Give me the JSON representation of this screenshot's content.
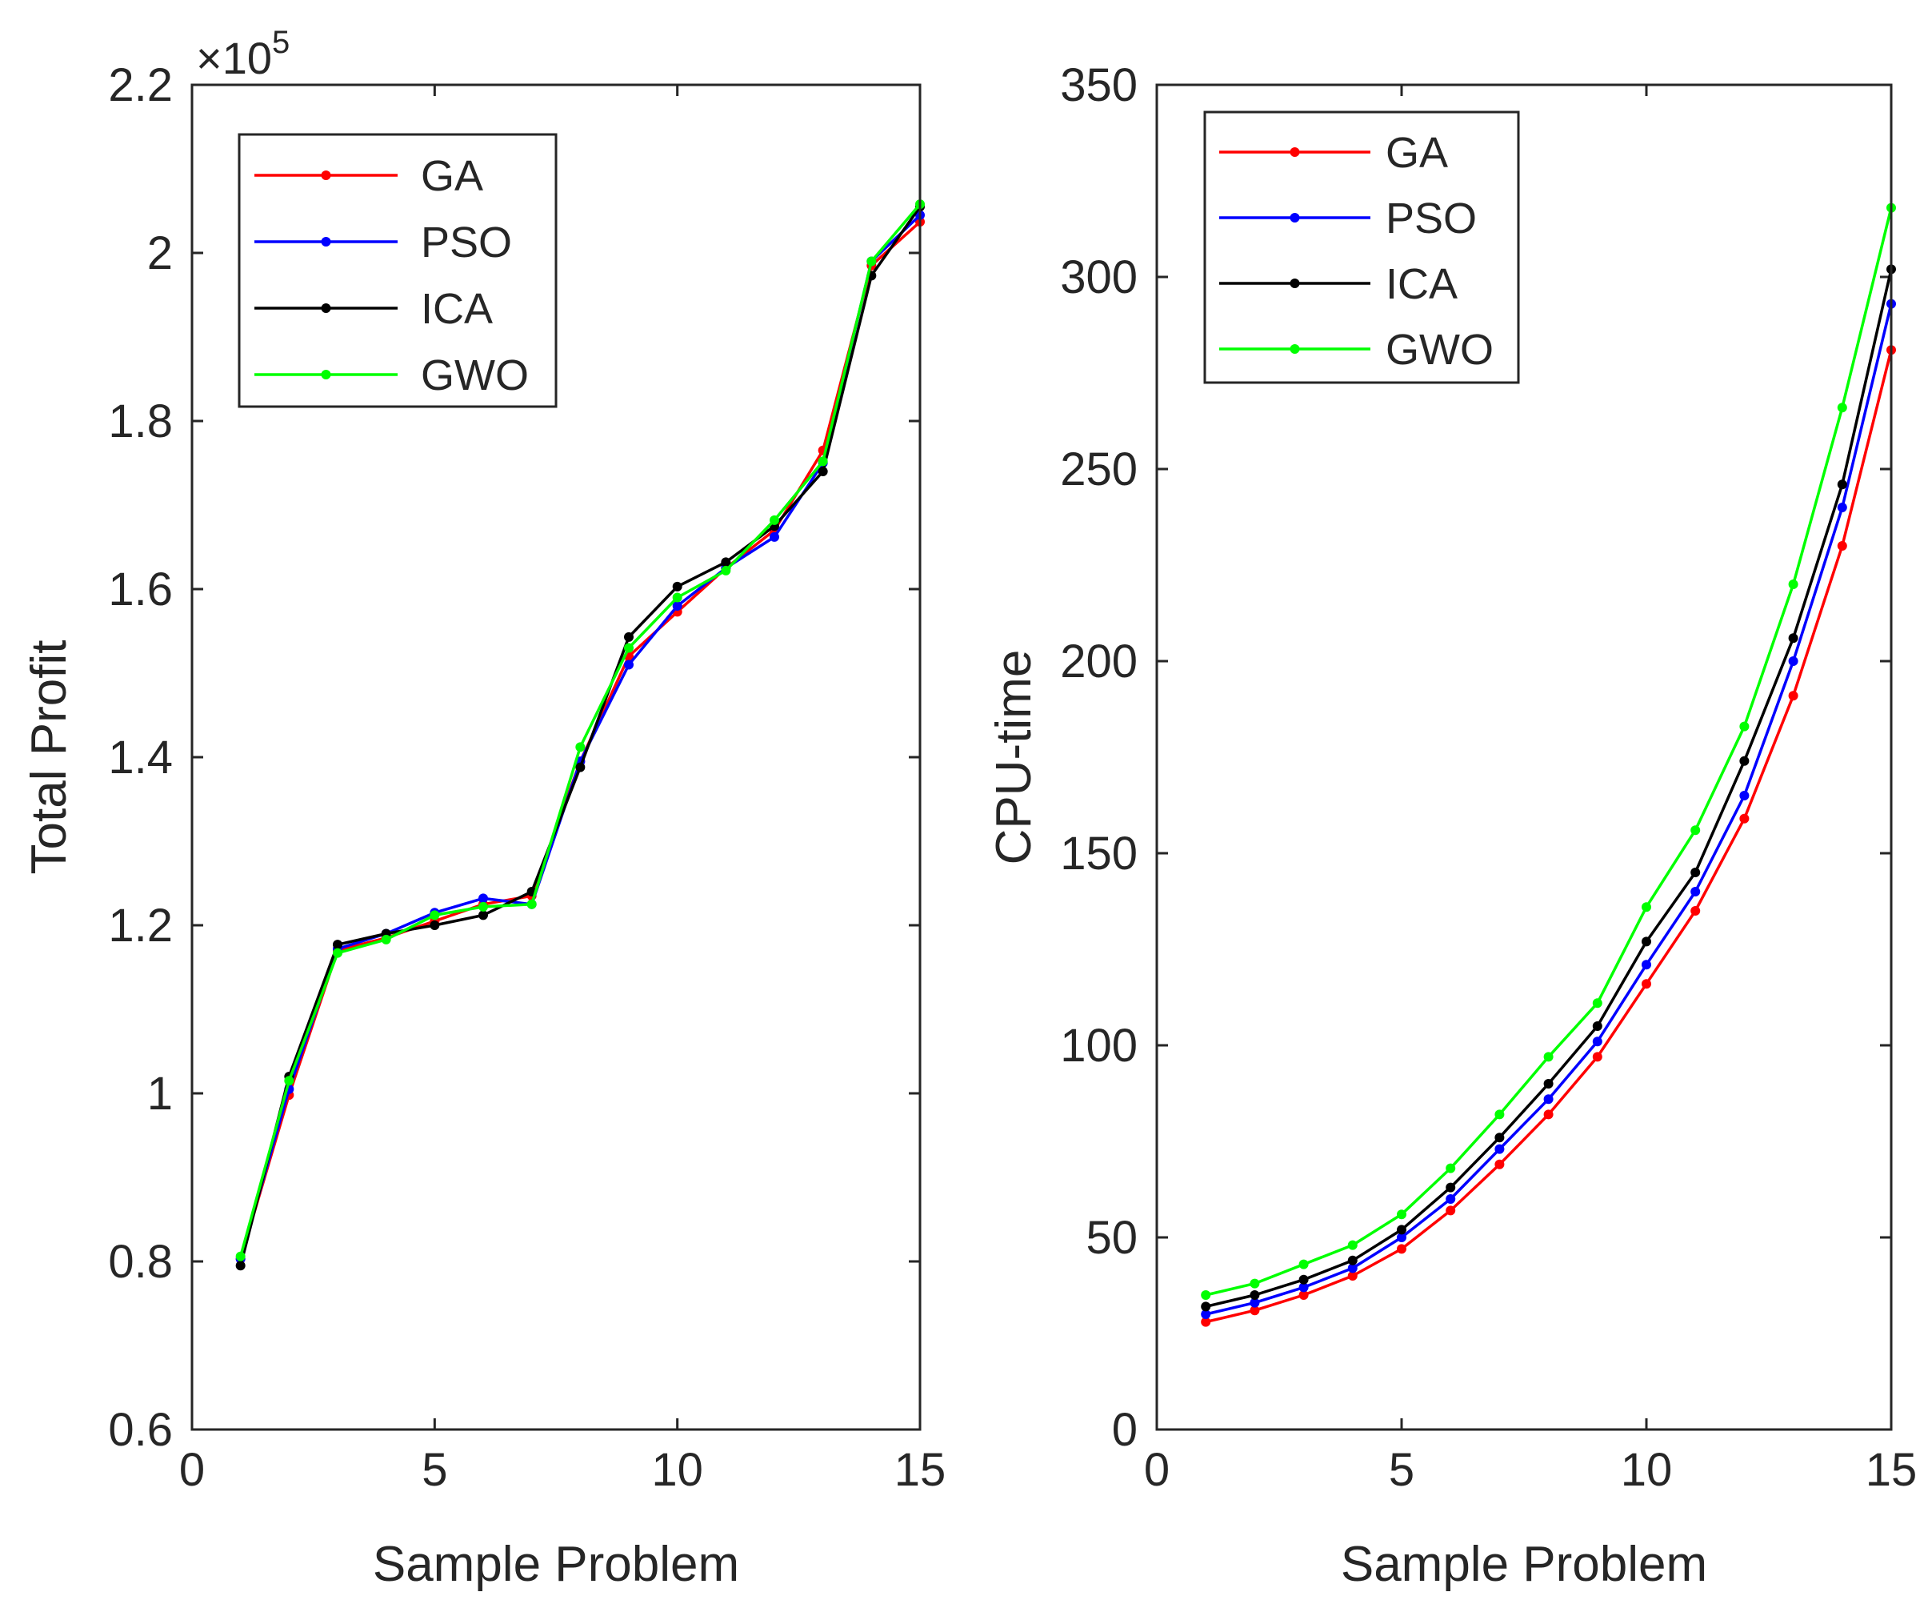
{
  "chart_data": [
    {
      "type": "line",
      "title": "",
      "xlabel": "Sample Problem",
      "ylabel": "Total Profit",
      "exponent_label": "×10^5",
      "exponent_base": "×10",
      "exponent_power": "5",
      "xlim": [
        0,
        15
      ],
      "ylim": [
        0.6,
        2.2
      ],
      "xticks": [
        0,
        5,
        10,
        15
      ],
      "xtick_labels": [
        "0",
        "5",
        "10",
        "15"
      ],
      "yticks": [
        0.6,
        0.8,
        1.0,
        1.2,
        1.4,
        1.6,
        1.8,
        2.0,
        2.2
      ],
      "ytick_labels": [
        "0.6",
        "0.8",
        "1",
        "1.2",
        "1.4",
        "1.6",
        "1.8",
        "2",
        "2.2"
      ],
      "legend_position": "top-left",
      "grid": false,
      "x": [
        1,
        2,
        3,
        4,
        5,
        6,
        7,
        8,
        9,
        10,
        11,
        12,
        13,
        14,
        15
      ],
      "series": [
        {
          "name": "GA",
          "color": "#ff0000",
          "values": [
            0.803,
            0.998,
            1.17,
            1.185,
            1.205,
            1.225,
            1.235,
            1.395,
            1.52,
            1.573,
            1.625,
            1.67,
            1.765,
            1.985,
            2.037
          ]
        },
        {
          "name": "PSO",
          "color": "#0000ff",
          "values": [
            0.803,
            1.005,
            1.172,
            1.19,
            1.215,
            1.232,
            1.225,
            1.395,
            1.51,
            1.58,
            1.625,
            1.662,
            1.75,
            1.99,
            2.045
          ]
        },
        {
          "name": "ICA",
          "color": "#000000",
          "values": [
            0.795,
            1.02,
            1.177,
            1.19,
            1.2,
            1.212,
            1.24,
            1.388,
            1.543,
            1.603,
            1.632,
            1.675,
            1.74,
            1.973,
            2.055
          ]
        },
        {
          "name": "GWO",
          "color": "#00ff00",
          "values": [
            0.806,
            1.015,
            1.167,
            1.183,
            1.212,
            1.222,
            1.225,
            1.412,
            1.53,
            1.59,
            1.622,
            1.682,
            1.752,
            1.99,
            2.058
          ]
        }
      ]
    },
    {
      "type": "line",
      "title": "",
      "xlabel": "Sample Problem",
      "ylabel": "CPU-time",
      "xlim": [
        0,
        15
      ],
      "ylim": [
        0,
        350
      ],
      "xticks": [
        0,
        5,
        10,
        15
      ],
      "xtick_labels": [
        "0",
        "5",
        "10",
        "15"
      ],
      "yticks": [
        0,
        50,
        100,
        150,
        200,
        250,
        300,
        350
      ],
      "ytick_labels": [
        "0",
        "50",
        "100",
        "150",
        "200",
        "250",
        "300",
        "350"
      ],
      "legend_position": "top-left",
      "grid": false,
      "x": [
        1,
        2,
        3,
        4,
        5,
        6,
        7,
        8,
        9,
        10,
        11,
        12,
        13,
        14,
        15
      ],
      "series": [
        {
          "name": "GA",
          "color": "#ff0000",
          "values": [
            28,
            31,
            35,
            40,
            47,
            57,
            69,
            82,
            97,
            116,
            135,
            159,
            191,
            230,
            281
          ]
        },
        {
          "name": "PSO",
          "color": "#0000ff",
          "values": [
            30,
            33,
            37,
            42,
            50,
            60,
            73,
            86,
            101,
            121,
            140,
            165,
            200,
            240,
            293
          ]
        },
        {
          "name": "ICA",
          "color": "#000000",
          "values": [
            32,
            35,
            39,
            44,
            52,
            63,
            76,
            90,
            105,
            127,
            145,
            174,
            206,
            246,
            302
          ]
        },
        {
          "name": "GWO",
          "color": "#00ff00",
          "values": [
            35,
            38,
            43,
            48,
            56,
            68,
            82,
            97,
            111,
            136,
            156,
            183,
            220,
            266,
            318
          ]
        }
      ]
    }
  ]
}
